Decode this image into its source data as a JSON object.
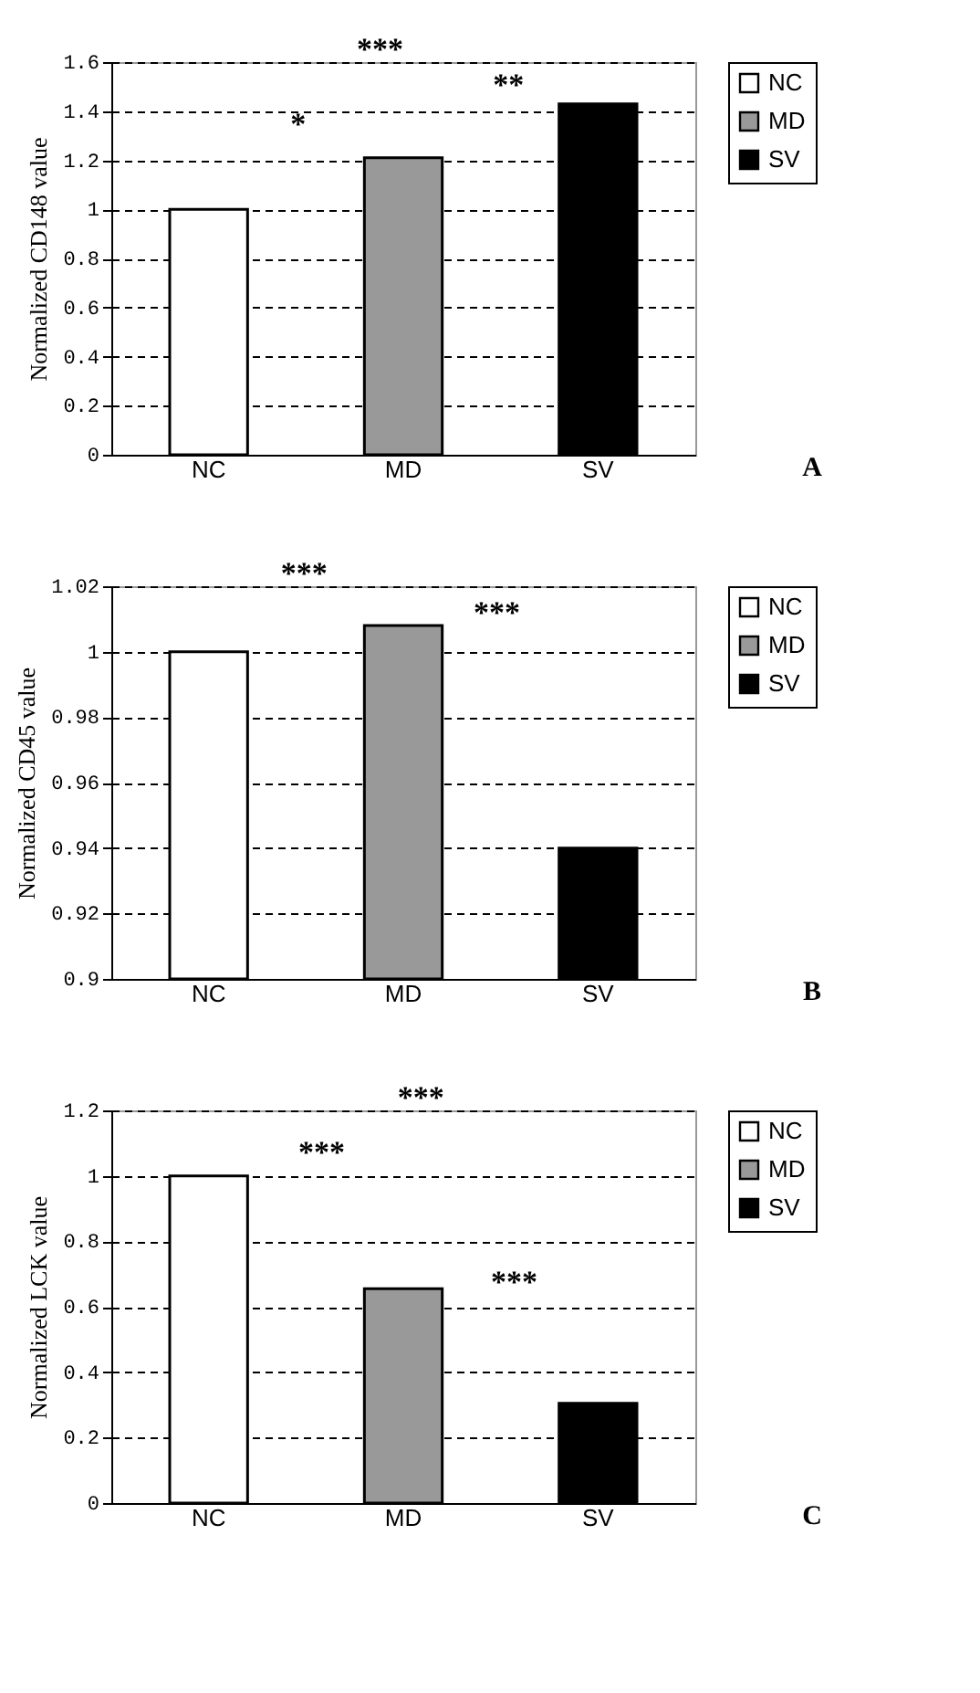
{
  "chart_data": [
    {
      "type": "bar",
      "categories": [
        "NC",
        "MD",
        "SV"
      ],
      "series": [
        {
          "name": "NC",
          "color": "#ffffff",
          "values": [
            1,
            null,
            null
          ]
        },
        {
          "name": "MD",
          "color": "#999999",
          "values": [
            null,
            1.21,
            null
          ]
        },
        {
          "name": "SV",
          "color": "#000000",
          "values": [
            null,
            null,
            1.43
          ]
        }
      ],
      "ylabel": "Normalized CD148 value",
      "ylim": [
        0,
        1.6
      ],
      "yticks": [
        0,
        0.2,
        0.4,
        0.6,
        0.8,
        1,
        1.2,
        1.4,
        1.6
      ],
      "grid": "y",
      "legend": "top right",
      "annotations": [
        "***",
        "**",
        "*",
        "A"
      ]
    },
    {
      "type": "bar",
      "categories": [
        "NC",
        "MD",
        "SV"
      ],
      "series": [
        {
          "name": "NC",
          "color": "#ffffff",
          "values": [
            1,
            null,
            null
          ]
        },
        {
          "name": "MD",
          "color": "#999999",
          "values": [
            null,
            1.008,
            null
          ]
        },
        {
          "name": "SV",
          "color": "#000000",
          "values": [
            null,
            null,
            0.94
          ]
        }
      ],
      "ylabel": "Normalized CD45 value",
      "ylim": [
        0.9,
        1.02
      ],
      "yticks": [
        0.9,
        0.92,
        0.94,
        0.96,
        0.98,
        1,
        1.02
      ],
      "grid": "y",
      "legend": "top right",
      "annotations": [
        "***",
        "***",
        "B"
      ]
    },
    {
      "type": "bar",
      "categories": [
        "NC",
        "MD",
        "SV"
      ],
      "series": [
        {
          "name": "NC",
          "color": "#ffffff",
          "values": [
            1,
            null,
            null
          ]
        },
        {
          "name": "MD",
          "color": "#999999",
          "values": [
            null,
            0.655,
            null
          ]
        },
        {
          "name": "SV",
          "color": "#000000",
          "values": [
            null,
            null,
            0.305
          ]
        }
      ],
      "ylabel": "Normalized LCK value",
      "ylim": [
        0,
        1.2
      ],
      "yticks": [
        0,
        0.2,
        0.4,
        0.6,
        0.8,
        1,
        1.2
      ],
      "grid": "y",
      "legend": "top right",
      "annotations": [
        "***",
        "***",
        "***",
        "C"
      ]
    }
  ]
}
